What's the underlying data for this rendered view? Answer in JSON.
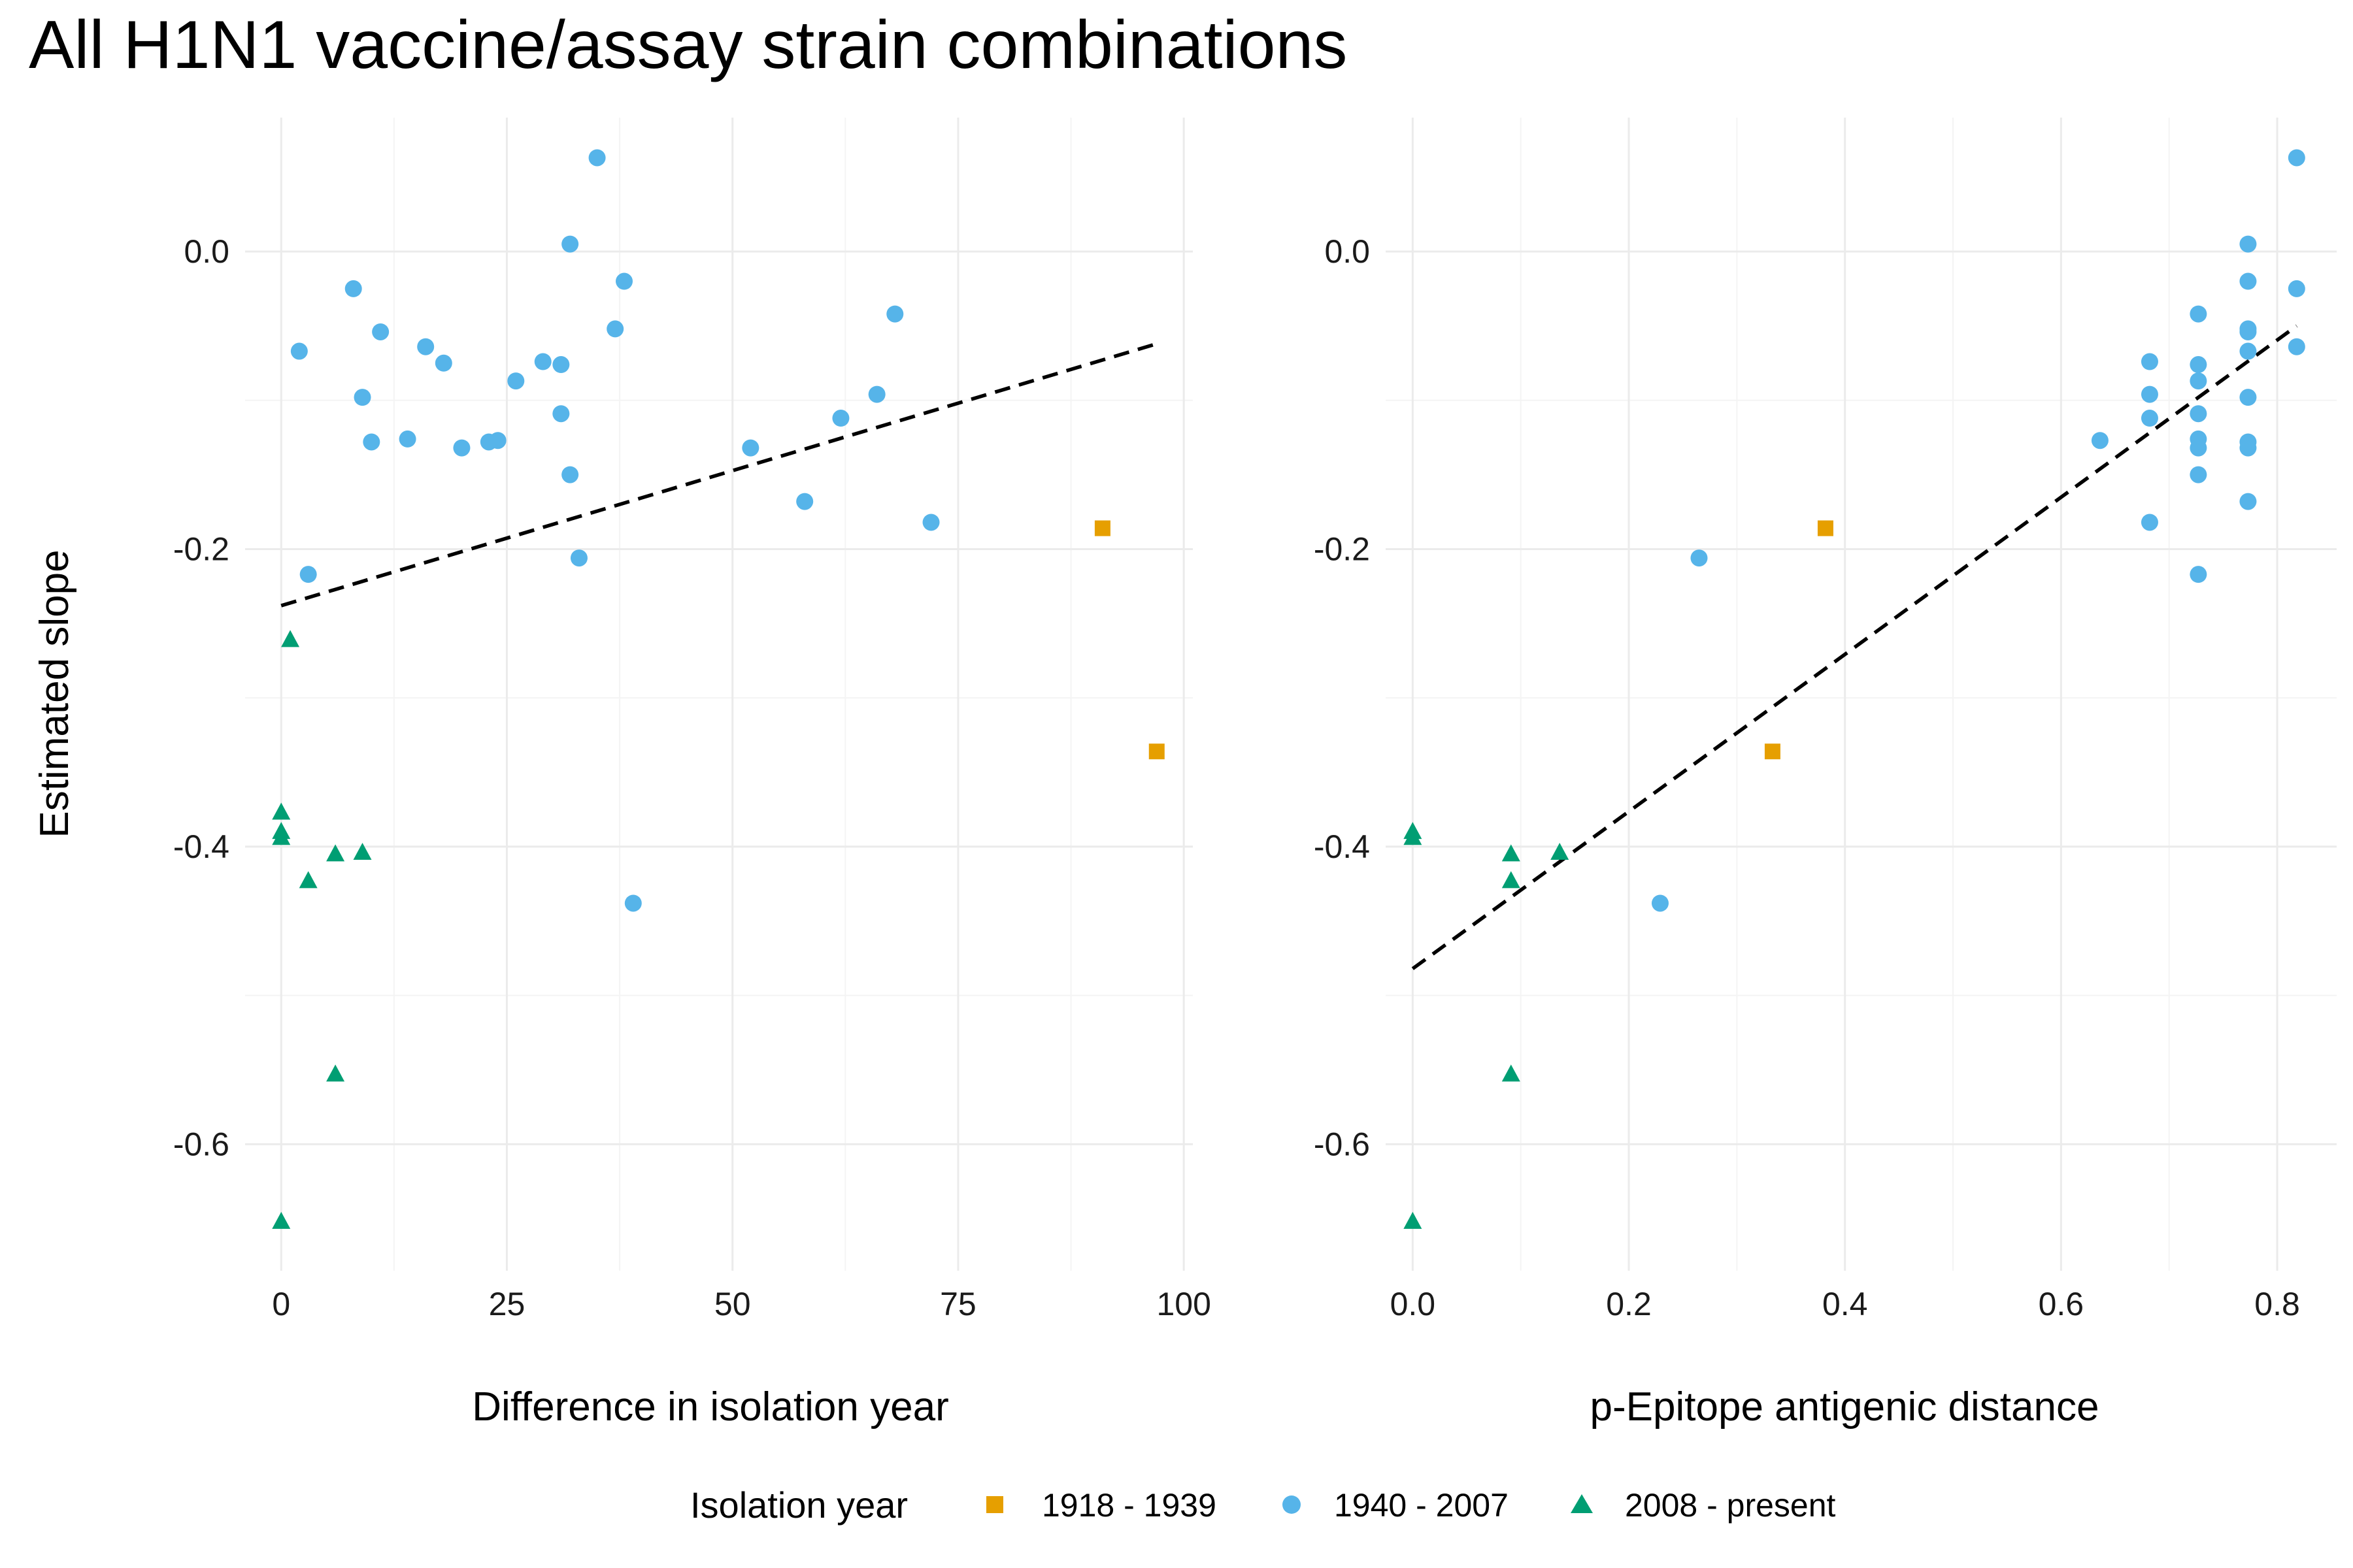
{
  "title": "All H1N1 vaccine/assay strain combinations",
  "ylabel": "Estimated slope",
  "legend": {
    "title": "Isolation year",
    "items": [
      {
        "key": "1918-1939",
        "label": "1918 - 1939",
        "shape": "square",
        "color": "#E69F00"
      },
      {
        "key": "1940-2007",
        "label": "1940 - 2007",
        "shape": "circle",
        "color": "#56B4E9"
      },
      {
        "key": "2008-present",
        "label": "2008 - present",
        "shape": "triangle",
        "color": "#009E73"
      }
    ]
  },
  "chart_data": [
    {
      "type": "scatter",
      "xlabel": "Difference in isolation year",
      "ylabel": "Estimated slope",
      "xlim": [
        -4,
        101
      ],
      "ylim": [
        -0.685,
        0.09
      ],
      "x_ticks": [
        0,
        25,
        50,
        75,
        100
      ],
      "x_tick_labels": [
        "0",
        "25",
        "50",
        "75",
        "100"
      ],
      "y_ticks": [
        0.0,
        -0.2,
        -0.4,
        -0.6
      ],
      "y_tick_labels": [
        "0.0",
        "-0.2",
        "-0.4",
        "-0.6"
      ],
      "grid": true,
      "trendline": {
        "style": "dashed",
        "x": [
          0,
          97
        ],
        "y": [
          -0.238,
          -0.062
        ]
      },
      "series": [
        {
          "name": "1918 - 1939",
          "key": "1918-1939",
          "points": [
            [
              91,
              -0.186
            ],
            [
              97,
              -0.336
            ]
          ]
        },
        {
          "name": "1940 - 2007",
          "key": "1940-2007",
          "points": [
            [
              2,
              -0.067
            ],
            [
              3,
              -0.217
            ],
            [
              8,
              -0.025
            ],
            [
              9,
              -0.098
            ],
            [
              10,
              -0.128
            ],
            [
              11,
              -0.054
            ],
            [
              14,
              -0.126
            ],
            [
              16,
              -0.064
            ],
            [
              18,
              -0.075
            ],
            [
              20,
              -0.132
            ],
            [
              23,
              -0.128
            ],
            [
              24,
              -0.127
            ],
            [
              26,
              -0.087
            ],
            [
              29,
              -0.074
            ],
            [
              31,
              -0.076
            ],
            [
              31,
              -0.109
            ],
            [
              32,
              -0.15
            ],
            [
              32,
              0.005
            ],
            [
              33,
              -0.206
            ],
            [
              35,
              0.063
            ],
            [
              37,
              -0.052
            ],
            [
              38,
              -0.02
            ],
            [
              39,
              -0.438
            ],
            [
              52,
              -0.132
            ],
            [
              58,
              -0.168
            ],
            [
              62,
              -0.112
            ],
            [
              66,
              -0.096
            ],
            [
              68,
              -0.042
            ],
            [
              72,
              -0.182
            ]
          ]
        },
        {
          "name": "2008 - present",
          "key": "2008-present",
          "points": [
            [
              0,
              -0.377
            ],
            [
              0,
              -0.39
            ],
            [
              0,
              -0.394
            ],
            [
              0,
              -0.652
            ],
            [
              1,
              -0.261
            ],
            [
              3,
              -0.423
            ],
            [
              6,
              -0.405
            ],
            [
              6,
              -0.553
            ],
            [
              9,
              -0.404
            ]
          ]
        }
      ]
    },
    {
      "type": "scatter",
      "xlabel": "p-Epitope antigenic distance",
      "ylabel": "Estimated slope",
      "xlim": [
        -0.025,
        0.855
      ],
      "ylim": [
        -0.685,
        0.09
      ],
      "x_ticks": [
        0.0,
        0.2,
        0.4,
        0.6,
        0.8
      ],
      "x_tick_labels": [
        "0.0",
        "0.2",
        "0.4",
        "0.6",
        "0.8"
      ],
      "y_ticks": [
        0.0,
        -0.2,
        -0.4,
        -0.6
      ],
      "y_tick_labels": [
        "0.0",
        "-0.2",
        "-0.4",
        "-0.6"
      ],
      "grid": true,
      "trendline": {
        "style": "dashed",
        "x": [
          0.0,
          0.818
        ],
        "y": [
          -0.482,
          -0.05
        ]
      },
      "series": [
        {
          "name": "1918 - 1939",
          "key": "1918-1939",
          "points": [
            [
              0.382,
              -0.186
            ],
            [
              0.333,
              -0.336
            ]
          ]
        },
        {
          "name": "1940 - 2007",
          "key": "1940-2007",
          "points": [
            [
              0.818,
              0.063
            ],
            [
              0.818,
              -0.025
            ],
            [
              0.818,
              -0.064
            ],
            [
              0.773,
              0.005
            ],
            [
              0.773,
              -0.02
            ],
            [
              0.773,
              -0.052
            ],
            [
              0.773,
              -0.054
            ],
            [
              0.773,
              -0.067
            ],
            [
              0.773,
              -0.098
            ],
            [
              0.773,
              -0.128
            ],
            [
              0.773,
              -0.132
            ],
            [
              0.773,
              -0.168
            ],
            [
              0.727,
              -0.042
            ],
            [
              0.727,
              -0.076
            ],
            [
              0.727,
              -0.087
            ],
            [
              0.727,
              -0.109
            ],
            [
              0.727,
              -0.126
            ],
            [
              0.727,
              -0.132
            ],
            [
              0.727,
              -0.15
            ],
            [
              0.727,
              -0.217
            ],
            [
              0.682,
              -0.074
            ],
            [
              0.682,
              -0.096
            ],
            [
              0.682,
              -0.112
            ],
            [
              0.682,
              -0.182
            ],
            [
              0.636,
              -0.127
            ],
            [
              0.265,
              -0.206
            ],
            [
              0.229,
              -0.438
            ]
          ]
        },
        {
          "name": "2008 - present",
          "key": "2008-present",
          "points": [
            [
              0.0,
              -0.39
            ],
            [
              0.0,
              -0.394
            ],
            [
              0.0,
              -0.652
            ],
            [
              0.091,
              -0.405
            ],
            [
              0.091,
              -0.423
            ],
            [
              0.091,
              -0.553
            ],
            [
              0.136,
              -0.404
            ]
          ]
        }
      ]
    }
  ]
}
